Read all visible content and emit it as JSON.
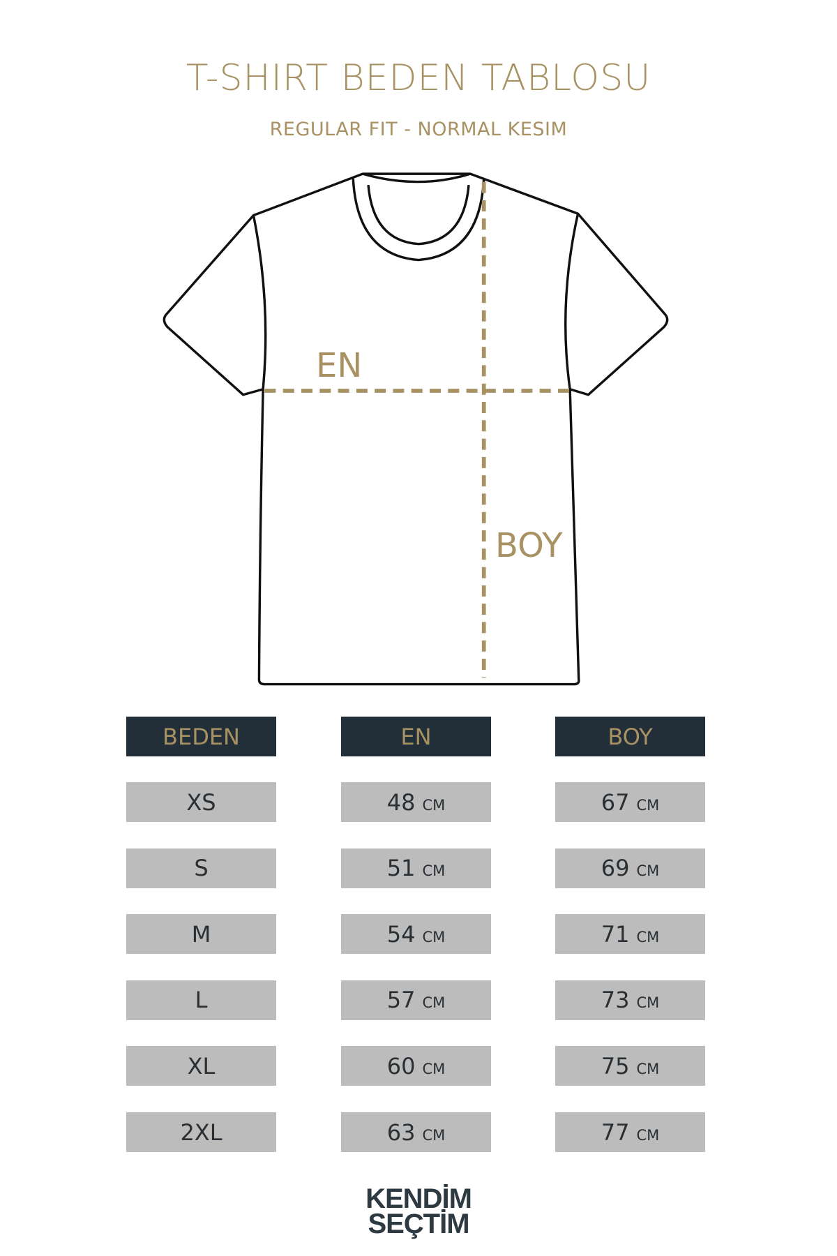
{
  "title": "T-SHIRT BEDEN TABLOSU",
  "subtitle": "REGULAR FIT - NORMAL KESIM",
  "diagram": {
    "width_label": "EN",
    "length_label": "BOY",
    "accent_color": "#a89263",
    "outline_color": "#111111"
  },
  "table": {
    "headers": [
      "BEDEN",
      "EN",
      "BOY"
    ],
    "unit": "CM",
    "rows": [
      {
        "size": "XS",
        "en": "48",
        "boy": "67"
      },
      {
        "size": "S",
        "en": "51",
        "boy": "69"
      },
      {
        "size": "M",
        "en": "54",
        "boy": "71"
      },
      {
        "size": "L",
        "en": "57",
        "boy": "73"
      },
      {
        "size": "XL",
        "en": "60",
        "boy": "75"
      },
      {
        "size": "2XL",
        "en": "63",
        "boy": "77"
      }
    ],
    "header_color": "#222f38",
    "row_color": "#bcbcbc"
  },
  "logo": {
    "line1": "KENDİM",
    "line2": "SEÇTİM"
  }
}
